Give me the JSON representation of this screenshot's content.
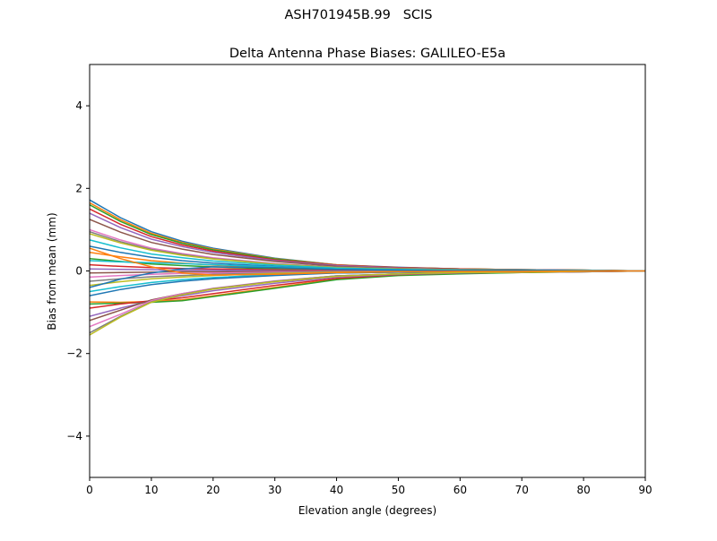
{
  "suptitle": "ASH701945B.99   SCIS",
  "chart_data": {
    "type": "line",
    "title": "Delta Antenna Phase Biases: GALILEO-E5a",
    "xlabel": "Elevation angle (degrees)",
    "ylabel": "Bias from mean (mm)",
    "xlim": [
      0,
      90
    ],
    "ylim": [
      -5,
      5
    ],
    "xticks": [
      0,
      10,
      20,
      30,
      40,
      50,
      60,
      70,
      80,
      90
    ],
    "yticks": [
      -4,
      -2,
      0,
      2,
      4
    ],
    "ytick_labels": [
      "−4",
      "−2",
      "0",
      "2",
      "4"
    ],
    "grid": false,
    "colors": [
      "#1f77b4",
      "#ff7f0e",
      "#2ca02c",
      "#d62728",
      "#9467bd",
      "#8c564b",
      "#e377c2",
      "#7f7f7f",
      "#bcbd22",
      "#17becf"
    ],
    "x": [
      0,
      5,
      10,
      15,
      20,
      30,
      40,
      50,
      60,
      70,
      80,
      90
    ],
    "series": [
      {
        "values": [
          1.72,
          1.29,
          0.95,
          0.72,
          0.55,
          0.31,
          0.15,
          0.09,
          0.05,
          0.03,
          0.02,
          0
        ]
      },
      {
        "values": [
          1.65,
          1.24,
          0.91,
          0.69,
          0.53,
          0.3,
          0.15,
          0.08,
          0.05,
          0.03,
          0.02,
          0
        ]
      },
      {
        "values": [
          1.6,
          1.2,
          0.88,
          0.67,
          0.51,
          0.29,
          0.14,
          0.08,
          0.05,
          0.03,
          0.02,
          0
        ]
      },
      {
        "values": [
          1.5,
          1.13,
          0.83,
          0.63,
          0.48,
          0.27,
          0.14,
          0.08,
          0.05,
          0.03,
          0.02,
          0
        ]
      },
      {
        "values": [
          1.4,
          1.05,
          0.77,
          0.59,
          0.45,
          0.25,
          0.13,
          0.07,
          0.04,
          0.03,
          0.01,
          0
        ]
      },
      {
        "values": [
          1.25,
          0.94,
          0.69,
          0.53,
          0.4,
          0.23,
          0.11,
          0.06,
          0.04,
          0.03,
          0.01,
          0
        ]
      },
      {
        "values": [
          1.0,
          0.75,
          0.55,
          0.42,
          0.32,
          0.18,
          0.09,
          0.05,
          0.03,
          0.02,
          0.01,
          0
        ]
      },
      {
        "values": [
          0.95,
          0.71,
          0.52,
          0.4,
          0.3,
          0.17,
          0.09,
          0.05,
          0.03,
          0.02,
          0.01,
          0
        ]
      },
      {
        "values": [
          0.9,
          0.68,
          0.5,
          0.38,
          0.29,
          0.16,
          0.08,
          0.05,
          0.03,
          0.02,
          0.01,
          0
        ]
      },
      {
        "values": [
          0.75,
          0.56,
          0.41,
          0.32,
          0.24,
          0.14,
          0.07,
          0.04,
          0.02,
          0.02,
          0.01,
          0
        ]
      },
      {
        "values": [
          0.6,
          0.45,
          0.33,
          0.25,
          0.19,
          0.11,
          0.05,
          0.03,
          0.02,
          0.01,
          0.01,
          0
        ]
      },
      {
        "values": [
          0.45,
          0.34,
          0.25,
          0.19,
          0.14,
          0.08,
          0.04,
          0.02,
          0.01,
          0.01,
          0,
          0
        ]
      },
      {
        "values": [
          0.3,
          0.23,
          0.17,
          0.13,
          0.1,
          0.05,
          0.03,
          0.02,
          0.01,
          0.01,
          0,
          0
        ]
      },
      {
        "values": [
          0.15,
          0.11,
          0.08,
          0.06,
          0.05,
          0.03,
          0.01,
          0.01,
          0,
          0,
          0,
          0
        ]
      },
      {
        "values": [
          0.05,
          0.04,
          0.03,
          0.02,
          0.02,
          0.01,
          0,
          0,
          0,
          0,
          0,
          0
        ]
      },
      {
        "values": [
          -0.05,
          -0.04,
          -0.03,
          -0.02,
          -0.02,
          -0.01,
          0,
          0,
          0,
          0,
          0,
          0
        ]
      },
      {
        "values": [
          -0.15,
          -0.11,
          -0.08,
          -0.06,
          -0.05,
          -0.03,
          -0.01,
          -0.01,
          0,
          0,
          0,
          0
        ]
      },
      {
        "values": [
          -0.25,
          -0.19,
          -0.14,
          -0.11,
          -0.08,
          -0.05,
          -0.02,
          -0.01,
          -0.01,
          -0.01,
          0,
          0
        ]
      },
      {
        "values": [
          -0.35,
          -0.26,
          -0.19,
          -0.15,
          -0.11,
          -0.06,
          -0.03,
          -0.02,
          -0.01,
          -0.01,
          0,
          0
        ]
      },
      {
        "values": [
          -0.5,
          -0.38,
          -0.28,
          -0.21,
          -0.16,
          -0.09,
          -0.05,
          -0.03,
          -0.02,
          -0.01,
          -0.01,
          0
        ]
      },
      {
        "values": [
          -0.6,
          -0.45,
          -0.33,
          -0.25,
          -0.19,
          -0.11,
          -0.05,
          -0.03,
          -0.02,
          -0.01,
          -0.01,
          0
        ]
      },
      {
        "values": [
          -0.75,
          -0.76,
          -0.74,
          -0.7,
          -0.6,
          -0.4,
          -0.2,
          -0.1,
          -0.06,
          -0.04,
          -0.02,
          0
        ]
      },
      {
        "values": [
          -0.8,
          -0.78,
          -0.76,
          -0.72,
          -0.62,
          -0.42,
          -0.21,
          -0.11,
          -0.07,
          -0.04,
          -0.02,
          0
        ]
      },
      {
        "values": [
          -0.9,
          -0.8,
          -0.72,
          -0.65,
          -0.55,
          -0.35,
          -0.18,
          -0.09,
          -0.05,
          -0.03,
          -0.02,
          0
        ]
      },
      {
        "values": [
          -1.1,
          -0.9,
          -0.72,
          -0.6,
          -0.48,
          -0.3,
          -0.15,
          -0.08,
          -0.05,
          -0.03,
          -0.02,
          0
        ]
      },
      {
        "values": [
          -1.2,
          -0.95,
          -0.7,
          -0.55,
          -0.43,
          -0.25,
          -0.12,
          -0.07,
          -0.04,
          -0.03,
          -0.01,
          0
        ]
      },
      {
        "values": [
          -1.35,
          -1.05,
          -0.72,
          -0.55,
          -0.42,
          -0.24,
          -0.12,
          -0.07,
          -0.04,
          -0.03,
          -0.01,
          0
        ]
      },
      {
        "values": [
          -1.5,
          -1.1,
          -0.75,
          -0.57,
          -0.43,
          -0.25,
          -0.12,
          -0.07,
          -0.04,
          -0.03,
          -0.01,
          0
        ]
      },
      {
        "values": [
          -1.55,
          -1.12,
          -0.76,
          -0.58,
          -0.44,
          -0.26,
          -0.13,
          -0.07,
          -0.04,
          -0.03,
          -0.01,
          0
        ]
      },
      {
        "values": [
          0.25,
          0.22,
          0.2,
          0.18,
          0.15,
          0.1,
          0.05,
          0.03,
          0.02,
          0.01,
          0.01,
          0
        ]
      },
      {
        "values": [
          -0.4,
          -0.2,
          -0.05,
          0.05,
          0.1,
          0.08,
          0.04,
          0.02,
          0.01,
          0.01,
          0,
          0
        ]
      },
      {
        "values": [
          0.55,
          0.3,
          0.1,
          -0.05,
          -0.1,
          -0.08,
          -0.04,
          -0.02,
          -0.01,
          -0.01,
          0,
          0
        ]
      }
    ]
  }
}
